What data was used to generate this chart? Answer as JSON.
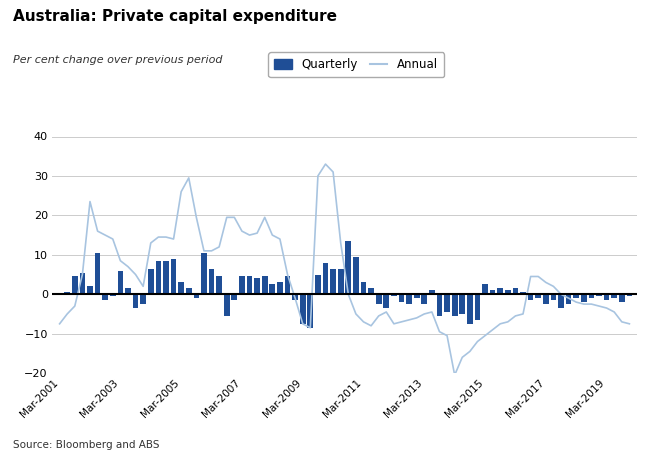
{
  "title": "Australia: Private capital expenditure",
  "subtitle": "Per cent change over previous period",
  "source": "Source: Bloomberg and ABS",
  "bar_color": "#1F4E96",
  "line_color": "#A8C4E0",
  "background_color": "#ffffff",
  "ylim": [
    -20,
    40
  ],
  "yticks": [
    -20,
    -10,
    0,
    10,
    20,
    30,
    40
  ],
  "xtick_labels": [
    "Mar-2001",
    "Mar-2003",
    "Mar-2005",
    "Mar-2007",
    "Mar-2009",
    "Mar-2011",
    "Mar-2013",
    "Mar-2015",
    "Mar-2017",
    "Mar-2019"
  ],
  "quarterly_data": [
    0.2,
    0.5,
    4.5,
    5.5,
    2.0,
    10.5,
    -1.5,
    -0.5,
    6.0,
    1.5,
    -3.5,
    -2.5,
    6.5,
    8.5,
    8.5,
    9.0,
    3.0,
    1.5,
    -1.0,
    10.5,
    6.5,
    4.5,
    -5.5,
    -1.5,
    4.5,
    4.5,
    4.0,
    4.5,
    2.5,
    3.0,
    4.5,
    -1.5,
    -7.5,
    -8.5,
    5.0,
    8.0,
    6.5,
    6.5,
    13.5,
    9.5,
    3.0,
    1.5,
    -2.5,
    -3.5,
    -0.5,
    -2.0,
    -2.5,
    -1.0,
    -2.5,
    1.0,
    -5.5,
    -4.5,
    -5.5,
    -5.0,
    -7.5,
    -6.5,
    2.5,
    1.0,
    1.5,
    1.0,
    1.5,
    0.5,
    -1.5,
    -1.0,
    -2.5,
    -1.5,
    -3.5,
    -2.5,
    -1.0,
    -2.0,
    -1.0,
    -0.5,
    -1.5,
    -1.0,
    -2.0,
    -0.5
  ],
  "annual_data": [
    -7.5,
    -5.0,
    -3.0,
    5.0,
    23.5,
    16.0,
    15.0,
    14.0,
    8.5,
    7.0,
    5.0,
    2.0,
    13.0,
    14.5,
    14.5,
    14.0,
    26.0,
    29.5,
    19.5,
    11.0,
    11.0,
    12.0,
    19.5,
    19.5,
    16.0,
    15.0,
    15.5,
    19.5,
    15.0,
    14.0,
    5.0,
    -1.0,
    -7.5,
    -8.5,
    30.0,
    33.0,
    31.0,
    13.0,
    0.0,
    -5.0,
    -7.0,
    -8.0,
    -5.5,
    -4.5,
    -7.5,
    -7.0,
    -6.5,
    -6.0,
    -5.0,
    -4.5,
    -9.5,
    -10.5,
    -20.5,
    -16.0,
    -14.5,
    -12.0,
    -10.5,
    -9.0,
    -7.5,
    -7.0,
    -5.5,
    -5.0,
    4.5,
    4.5,
    3.0,
    2.0,
    0.0,
    -1.0,
    -2.0,
    -2.5,
    -2.5,
    -3.0,
    -3.5,
    -4.5,
    -7.0,
    -7.5
  ]
}
